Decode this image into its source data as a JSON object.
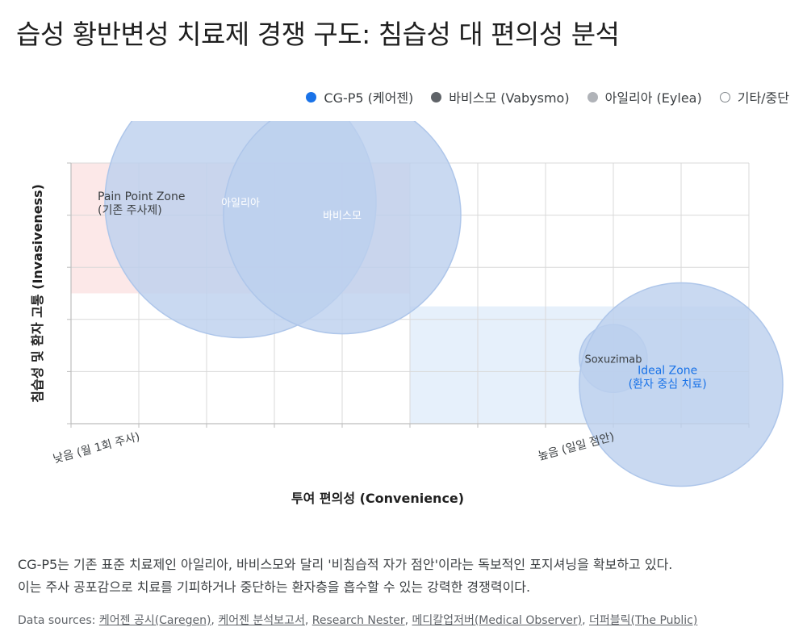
{
  "title": "습성 황반변성 치료제 경쟁 구도: 침습성 대 편의성 분석",
  "legend": [
    {
      "label": "CG-P5 (케어젠)",
      "color": "#1a73e8",
      "style": "filled"
    },
    {
      "label": "바비스모 (Vabysmo)",
      "color": "#5f6368",
      "style": "filled"
    },
    {
      "label": "아일리아 (Eylea)",
      "color": "#b0b3b8",
      "style": "filled"
    },
    {
      "label": "기타/중단",
      "color": "#80868b",
      "style": "outline"
    }
  ],
  "chart_data": {
    "type": "scatter",
    "title": "",
    "xlabel": "투여 편의성 (Convenience)",
    "ylabel": "침습성 및 환자 고통 (Invasiveness)",
    "x_ticks": [
      {
        "value": 1,
        "label": "낮음 (월 1회 주사)"
      },
      {
        "value": 8,
        "label": "높음 (일일 점안)"
      }
    ],
    "xlim": [
      0,
      10
    ],
    "ylim": [
      0,
      10
    ],
    "grid": true,
    "legend_position": "top-right",
    "zones": [
      {
        "name": "Pain Point Zone",
        "label_line1": "Pain Point Zone",
        "label_line2": "(기존 주사제)",
        "x": [
          0,
          5
        ],
        "y": [
          5,
          10
        ],
        "color": "#fce8e8"
      },
      {
        "name": "Ideal Zone",
        "label_line1": "Ideal Zone",
        "label_line2": "(환자 중심 치료)",
        "x": [
          5,
          10
        ],
        "y": [
          0,
          4.5
        ],
        "color": "#e6f0fb",
        "label_color": "#1a73e8"
      }
    ],
    "points": [
      {
        "name": "아일리아",
        "x": 2.5,
        "y": 8.5,
        "size": 4,
        "color": "#bcd0ee"
      },
      {
        "name": "바비스모",
        "x": 4,
        "y": 8,
        "size": 3.5,
        "color": "#bcd0ee"
      },
      {
        "name": "Soxuzimab",
        "x": 8,
        "y": 2.5,
        "size": 1,
        "color": "#bcd0ee"
      },
      {
        "name": "CG-P5",
        "x": 9,
        "y": 1.5,
        "size": 3,
        "color": "#bcd0ee"
      }
    ]
  },
  "description": {
    "line1": "CG-P5는 기존 표준 치료제인 아일리아, 바비스모와 달리 '비침습적 자가 점안'이라는 독보적인 포지셔닝을 확보하고 있다.",
    "line2": "이는 주사 공포감으로 치료를 기피하거나 중단하는 환자층을 흡수할 수 있는 강력한 경쟁력이다."
  },
  "sources": {
    "label": "Data sources:",
    "items": [
      "케어젠 공시(Caregen)",
      "케어젠 분석보고서",
      "Research Nester",
      "메디칼업저버(Medical Observer)",
      "더퍼블릭(The Public)"
    ]
  }
}
